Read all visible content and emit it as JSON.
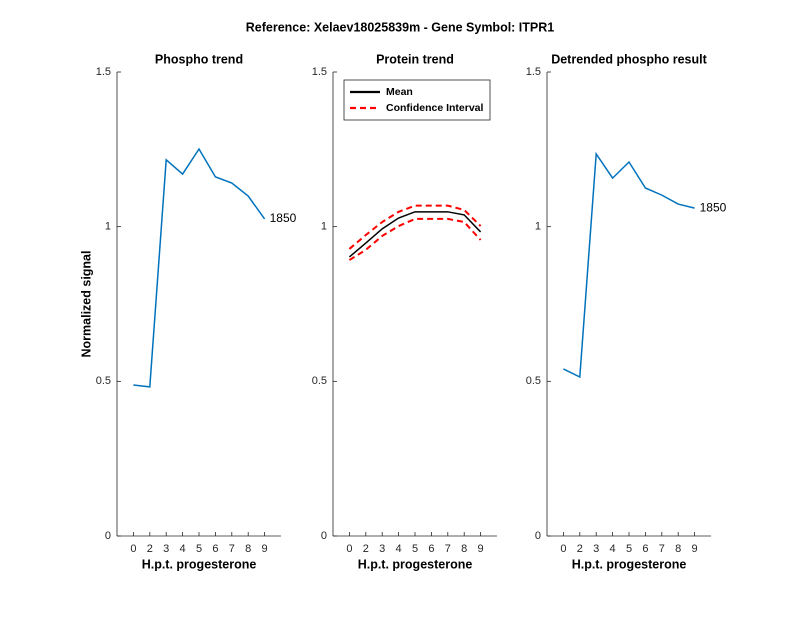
{
  "title": "Reference:  Xelaev18025839m - Gene Symbol:  ITPR1",
  "chart_data": [
    {
      "type": "line",
      "title": "Phospho trend",
      "ylabel": "Normalized signal",
      "xlabel": "H.p.t. progesterone",
      "categories": [
        "0",
        "2",
        "3",
        "4",
        "5",
        "6",
        "7",
        "8",
        "9"
      ],
      "ylim": [
        0,
        1.5
      ],
      "yticks": [
        0,
        0.5,
        1,
        1.5
      ],
      "series": [
        {
          "color": "#0072bd",
          "values": [
            0.488,
            0.482,
            1.216,
            1.17,
            1.251,
            1.161,
            1.141,
            1.099,
            1.025
          ]
        }
      ],
      "annotation": "1850"
    },
    {
      "type": "line",
      "title": "Protein trend",
      "xlabel": "H.p.t. progesterone",
      "categories": [
        "0",
        "2",
        "3",
        "4",
        "5",
        "6",
        "7",
        "8",
        "9"
      ],
      "ylim": [
        0,
        1.5
      ],
      "yticks": [
        0,
        0.5,
        1,
        1.5
      ],
      "legend": "upper left",
      "series": [
        {
          "name": "Mean",
          "color": "#000000",
          "values": [
            0.902,
            0.947,
            0.993,
            1.028,
            1.048,
            1.048,
            1.048,
            1.038,
            0.983
          ]
        },
        {
          "name": "Confidence Interval",
          "color": "#ff0000",
          "dashed": true,
          "upper": [
            0.928,
            0.973,
            1.015,
            1.048,
            1.068,
            1.068,
            1.068,
            1.054,
            1.002
          ],
          "lower": [
            0.892,
            0.925,
            0.97,
            1.002,
            1.025,
            1.025,
            1.025,
            1.015,
            0.957
          ]
        }
      ]
    },
    {
      "type": "line",
      "title": "Detrended phospho result",
      "xlabel": "H.p.t. progesterone",
      "categories": [
        "0",
        "2",
        "3",
        "4",
        "5",
        "6",
        "7",
        "8",
        "9"
      ],
      "ylim": [
        0,
        1.5
      ],
      "yticks": [
        0,
        0.5,
        1,
        1.5
      ],
      "series": [
        {
          "color": "#0072bd",
          "values": [
            0.54,
            0.514,
            1.235,
            1.157,
            1.209,
            1.125,
            1.102,
            1.073,
            1.06
          ]
        }
      ],
      "annotation": "1850"
    }
  ]
}
